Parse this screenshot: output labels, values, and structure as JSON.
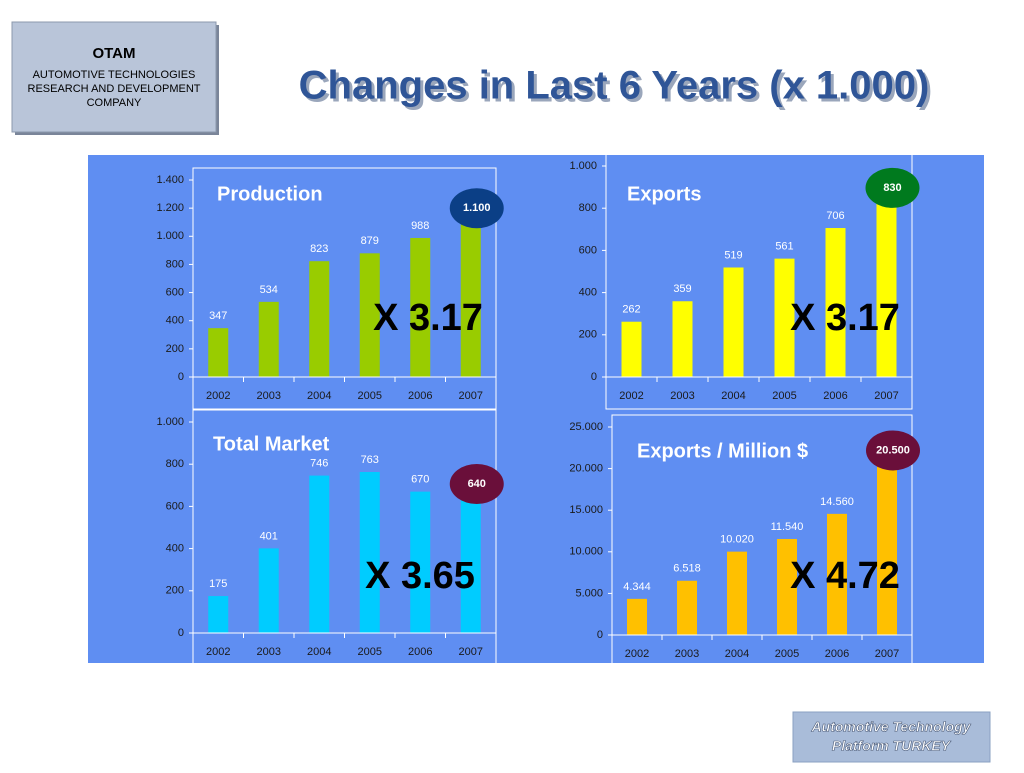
{
  "header": {
    "logo_title": "OTAM",
    "logo_lines": [
      "AUTOMOTIVE TECHNOLOGIES",
      "RESEARCH AND DEVELOPMENT",
      "COMPANY"
    ],
    "title": "Changes in Last 6 Years (x 1.000)"
  },
  "footer": {
    "lines": [
      "Automotive Technology",
      "Platform TURKEY"
    ]
  },
  "chart_data": [
    {
      "type": "bar",
      "title": "Production",
      "annotation": "X 3.17",
      "color": "#99cc00",
      "highlight_color": "#0b3f86",
      "categories": [
        "2002",
        "2003",
        "2004",
        "2005",
        "2006",
        "2007"
      ],
      "values": [
        347,
        534,
        823,
        879,
        988,
        1100
      ],
      "value_labels": [
        "347",
        "534",
        "823",
        "879",
        "988",
        "1.100"
      ],
      "ylim": [
        0,
        1400
      ],
      "yticks": [
        0,
        200,
        400,
        600,
        800,
        {
          "value": 1000,
          "label": "1.000"
        },
        {
          "value": 1200,
          "label": "1.200"
        },
        {
          "value": 1400,
          "label": "1.400"
        }
      ]
    },
    {
      "type": "bar",
      "title": "Exports",
      "annotation": "X 3.17",
      "color": "#ffff00",
      "highlight_color": "#007a1e",
      "categories": [
        "2002",
        "2003",
        "2004",
        "2005",
        "2006",
        "2007"
      ],
      "values": [
        262,
        359,
        519,
        561,
        706,
        830
      ],
      "ylim": [
        0,
        1000
      ],
      "yticks": [
        0,
        200,
        400,
        600,
        800,
        {
          "value": 1000,
          "label": "1.000"
        }
      ]
    },
    {
      "type": "bar",
      "title": "Total Market",
      "annotation": "X 3.65",
      "color": "#00ccff",
      "highlight_color": "#6a0f3a",
      "categories": [
        "2002",
        "2003",
        "2004",
        "2005",
        "2006",
        "2007"
      ],
      "values": [
        175,
        401,
        746,
        763,
        670,
        640
      ],
      "ylim": [
        0,
        1000
      ],
      "yticks": [
        0,
        200,
        400,
        600,
        800,
        {
          "value": 1000,
          "label": "1.000"
        }
      ]
    },
    {
      "type": "bar",
      "title": "Exports / Million $",
      "annotation": "X 4.72",
      "color": "#ffc000",
      "highlight_color": "#6a0f3a",
      "categories": [
        "2002",
        "2003",
        "2004",
        "2005",
        "2006",
        "2007"
      ],
      "values": [
        4344,
        6518,
        10020,
        11540,
        14560,
        20500
      ],
      "value_labels": [
        "4.344",
        "6.518",
        "10.020",
        "11.540",
        "14.560",
        "20.500"
      ],
      "ylim": [
        0,
        25000
      ],
      "yticks": [
        0,
        {
          "value": 5000,
          "label": "5.000"
        },
        {
          "value": 10000,
          "label": "10.000"
        },
        {
          "value": 15000,
          "label": "15.000"
        },
        {
          "value": 20000,
          "label": "20.000"
        },
        {
          "value": 25000,
          "label": "25.000"
        }
      ]
    }
  ]
}
